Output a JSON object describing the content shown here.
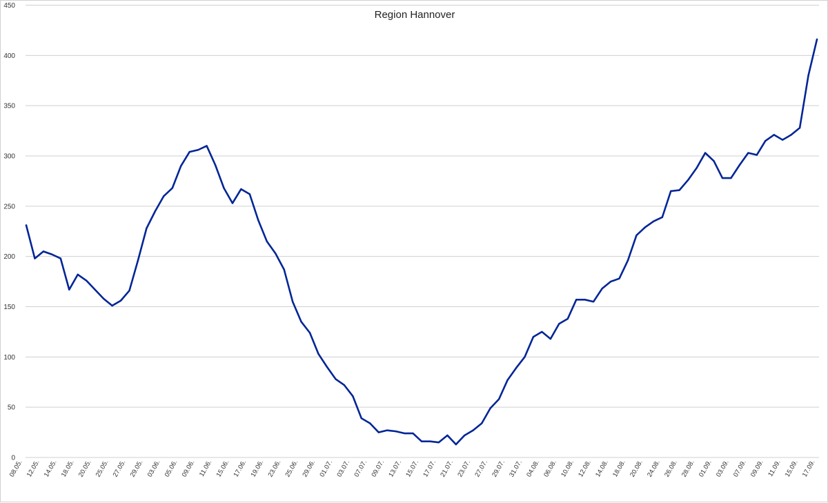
{
  "chart_data": {
    "type": "line",
    "title": "Region Hannover",
    "xlabel": "",
    "ylabel": "",
    "ylim": [
      0,
      450
    ],
    "yticks": [
      0,
      50,
      100,
      150,
      200,
      250,
      300,
      350,
      400,
      450
    ],
    "grid": true,
    "legend": "none",
    "line_color": "#002596",
    "x_tick_labels": [
      "08.05.",
      "12.05.",
      "14.05.",
      "18.05.",
      "20.05.",
      "25.05.",
      "27.05.",
      "29.05.",
      "03.06.",
      "05.06.",
      "09.06.",
      "11.06.",
      "15.06.",
      "17.06.",
      "19.06.",
      "23.06.",
      "25.06.",
      "29.06.",
      "01.07.",
      "03.07.",
      "07.07.",
      "09.07.",
      "13.07.",
      "15.07.",
      "17.07.",
      "21.07.",
      "23.07.",
      "27.07.",
      "29.07.",
      "31.07.",
      "04.08.",
      "06.08.",
      "10.08.",
      "12.08.",
      "14.08.",
      "18.08.",
      "20.08.",
      "24.08.",
      "26.08.",
      "28.08.",
      "01.09.",
      "03.09.",
      "07.09.",
      "09.09.",
      "11.09.",
      "15.09.",
      "17.09."
    ],
    "series": [
      {
        "values": [
          231,
          198,
          205,
          202,
          198,
          167,
          182,
          176,
          167,
          158,
          151,
          156,
          166,
          196,
          228,
          245,
          260,
          268,
          290,
          304,
          306,
          310,
          291,
          268,
          253,
          267,
          262,
          236,
          215,
          203,
          187,
          155,
          135,
          124,
          103,
          90,
          78,
          72,
          61,
          39,
          34,
          25,
          27,
          26,
          24,
          24,
          16,
          16,
          15,
          22,
          13,
          22,
          27,
          34,
          49,
          58,
          77,
          89,
          100,
          120,
          125,
          118,
          133,
          138,
          157,
          157,
          155,
          168,
          175,
          178,
          196,
          221,
          229,
          235,
          239,
          265,
          266,
          276,
          288,
          303,
          295,
          278,
          278,
          291,
          303,
          301,
          315,
          321,
          316,
          321,
          328,
          380,
          416
        ]
      }
    ]
  }
}
